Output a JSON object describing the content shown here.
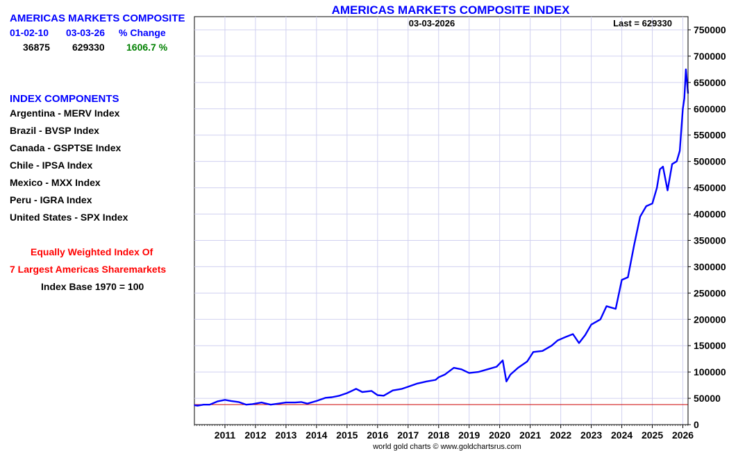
{
  "header": {
    "title": "AMERICAS MARKETS COMPOSITE",
    "col_start": "01-02-10",
    "col_end": "03-03-26",
    "col_change": "% Change",
    "val_start": "36875",
    "val_end": "629330",
    "val_change": "1606.7 %"
  },
  "components": {
    "heading": "INDEX COMPONENTS",
    "items": [
      "Argentina - MERV Index",
      "Brazil - BVSP Index",
      "Canada - GSPTSE Index",
      "Chile - IPSA Index",
      "Mexico - MXX Index",
      "Peru - IGRA Index",
      "United States - SPX Index"
    ]
  },
  "notes": {
    "line1": "Equally Weighted Index Of",
    "line2": "7 Largest Americas Sharemarkets",
    "line3": "Index Base 1970 = 100"
  },
  "footer": {
    "credit": "world gold charts © www.goldchartsrus.com"
  },
  "colors": {
    "series": "#0000ff",
    "grid": "#d0d0f0",
    "reference": "#cc0000",
    "title": "#0000ff"
  },
  "chart_data": {
    "type": "line",
    "title": "AMERICAS MARKETS COMPOSITE INDEX",
    "date_label": "03-03-2026",
    "last_label": "Last = 629330",
    "xlabel": "",
    "ylabel": "",
    "xlim": [
      2010.0,
      2026.17
    ],
    "ylim": [
      0,
      775000
    ],
    "y_ticks": [
      0,
      50000,
      100000,
      150000,
      200000,
      250000,
      300000,
      350000,
      400000,
      450000,
      500000,
      550000,
      600000,
      650000,
      700000,
      750000
    ],
    "x_ticks": [
      2011,
      2012,
      2013,
      2014,
      2015,
      2016,
      2017,
      2018,
      2019,
      2020,
      2021,
      2022,
      2023,
      2024,
      2025,
      2026
    ],
    "reference_line": 38000,
    "grid": true,
    "series": [
      {
        "name": "Americas Markets Composite Index",
        "x": [
          2010.0,
          2010.1,
          2010.3,
          2010.5,
          2010.75,
          2011.0,
          2011.2,
          2011.45,
          2011.7,
          2011.9,
          2012.2,
          2012.5,
          2012.75,
          2013.0,
          2013.3,
          2013.5,
          2013.7,
          2014.0,
          2014.3,
          2014.5,
          2014.75,
          2015.0,
          2015.3,
          2015.5,
          2015.8,
          2016.0,
          2016.2,
          2016.5,
          2016.8,
          2017.0,
          2017.3,
          2017.6,
          2017.9,
          2018.0,
          2018.2,
          2018.5,
          2018.75,
          2019.0,
          2019.3,
          2019.6,
          2019.9,
          2020.1,
          2020.22,
          2020.35,
          2020.6,
          2020.9,
          2021.1,
          2021.4,
          2021.7,
          2021.9,
          2022.1,
          2022.4,
          2022.6,
          2022.8,
          2023.0,
          2023.3,
          2023.5,
          2023.8,
          2024.0,
          2024.2,
          2024.4,
          2024.6,
          2024.8,
          2025.0,
          2025.15,
          2025.25,
          2025.35,
          2025.5,
          2025.65,
          2025.8,
          2025.9,
          2026.0,
          2026.05,
          2026.1,
          2026.17
        ],
        "values": [
          36875,
          36000,
          38000,
          38000,
          44000,
          47000,
          45000,
          43000,
          38000,
          39000,
          42000,
          38000,
          40000,
          42000,
          42000,
          43000,
          40000,
          45000,
          51000,
          52000,
          55000,
          60000,
          68000,
          62000,
          64000,
          56000,
          55000,
          65000,
          68000,
          72000,
          78000,
          82000,
          85000,
          90000,
          95000,
          108000,
          105000,
          98000,
          100000,
          105000,
          110000,
          122000,
          82000,
          95000,
          108000,
          120000,
          138000,
          140000,
          150000,
          160000,
          165000,
          172000,
          155000,
          170000,
          190000,
          200000,
          225000,
          220000,
          275000,
          280000,
          340000,
          395000,
          415000,
          420000,
          450000,
          485000,
          490000,
          445000,
          495000,
          500000,
          520000,
          600000,
          620000,
          675000,
          629330
        ]
      }
    ]
  }
}
